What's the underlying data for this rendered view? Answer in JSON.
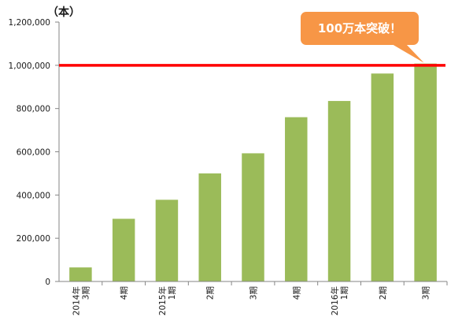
{
  "chart_data": {
    "type": "bar",
    "y_unit_label": "（本）",
    "categories": [
      [
        "2014年",
        "3期"
      ],
      [
        "4期"
      ],
      [
        "2015年",
        "1期"
      ],
      [
        "2期"
      ],
      [
        "3期"
      ],
      [
        "4期"
      ],
      [
        "2016年",
        "1期"
      ],
      [
        "2期"
      ],
      [
        "3期"
      ]
    ],
    "values": [
      65000,
      290000,
      378000,
      500000,
      593000,
      760000,
      835000,
      962000,
      1008000
    ],
    "ylim": [
      0,
      1200000
    ],
    "y_ticks": [
      "0",
      "200,000",
      "400,000",
      "600,000",
      "800,000",
      "1,000,000",
      "1,200,000"
    ],
    "y_tick_values": [
      0,
      200000,
      400000,
      600000,
      800000,
      1000000,
      1200000
    ],
    "grid": false,
    "reference_line": {
      "value": 1000000,
      "color": "#ff0000"
    },
    "callout": {
      "text": "100万本突破！",
      "color": "#f79646",
      "points_to_category_index": 8
    },
    "bar_color": "#9bbb59",
    "axis_color": "#868686"
  }
}
